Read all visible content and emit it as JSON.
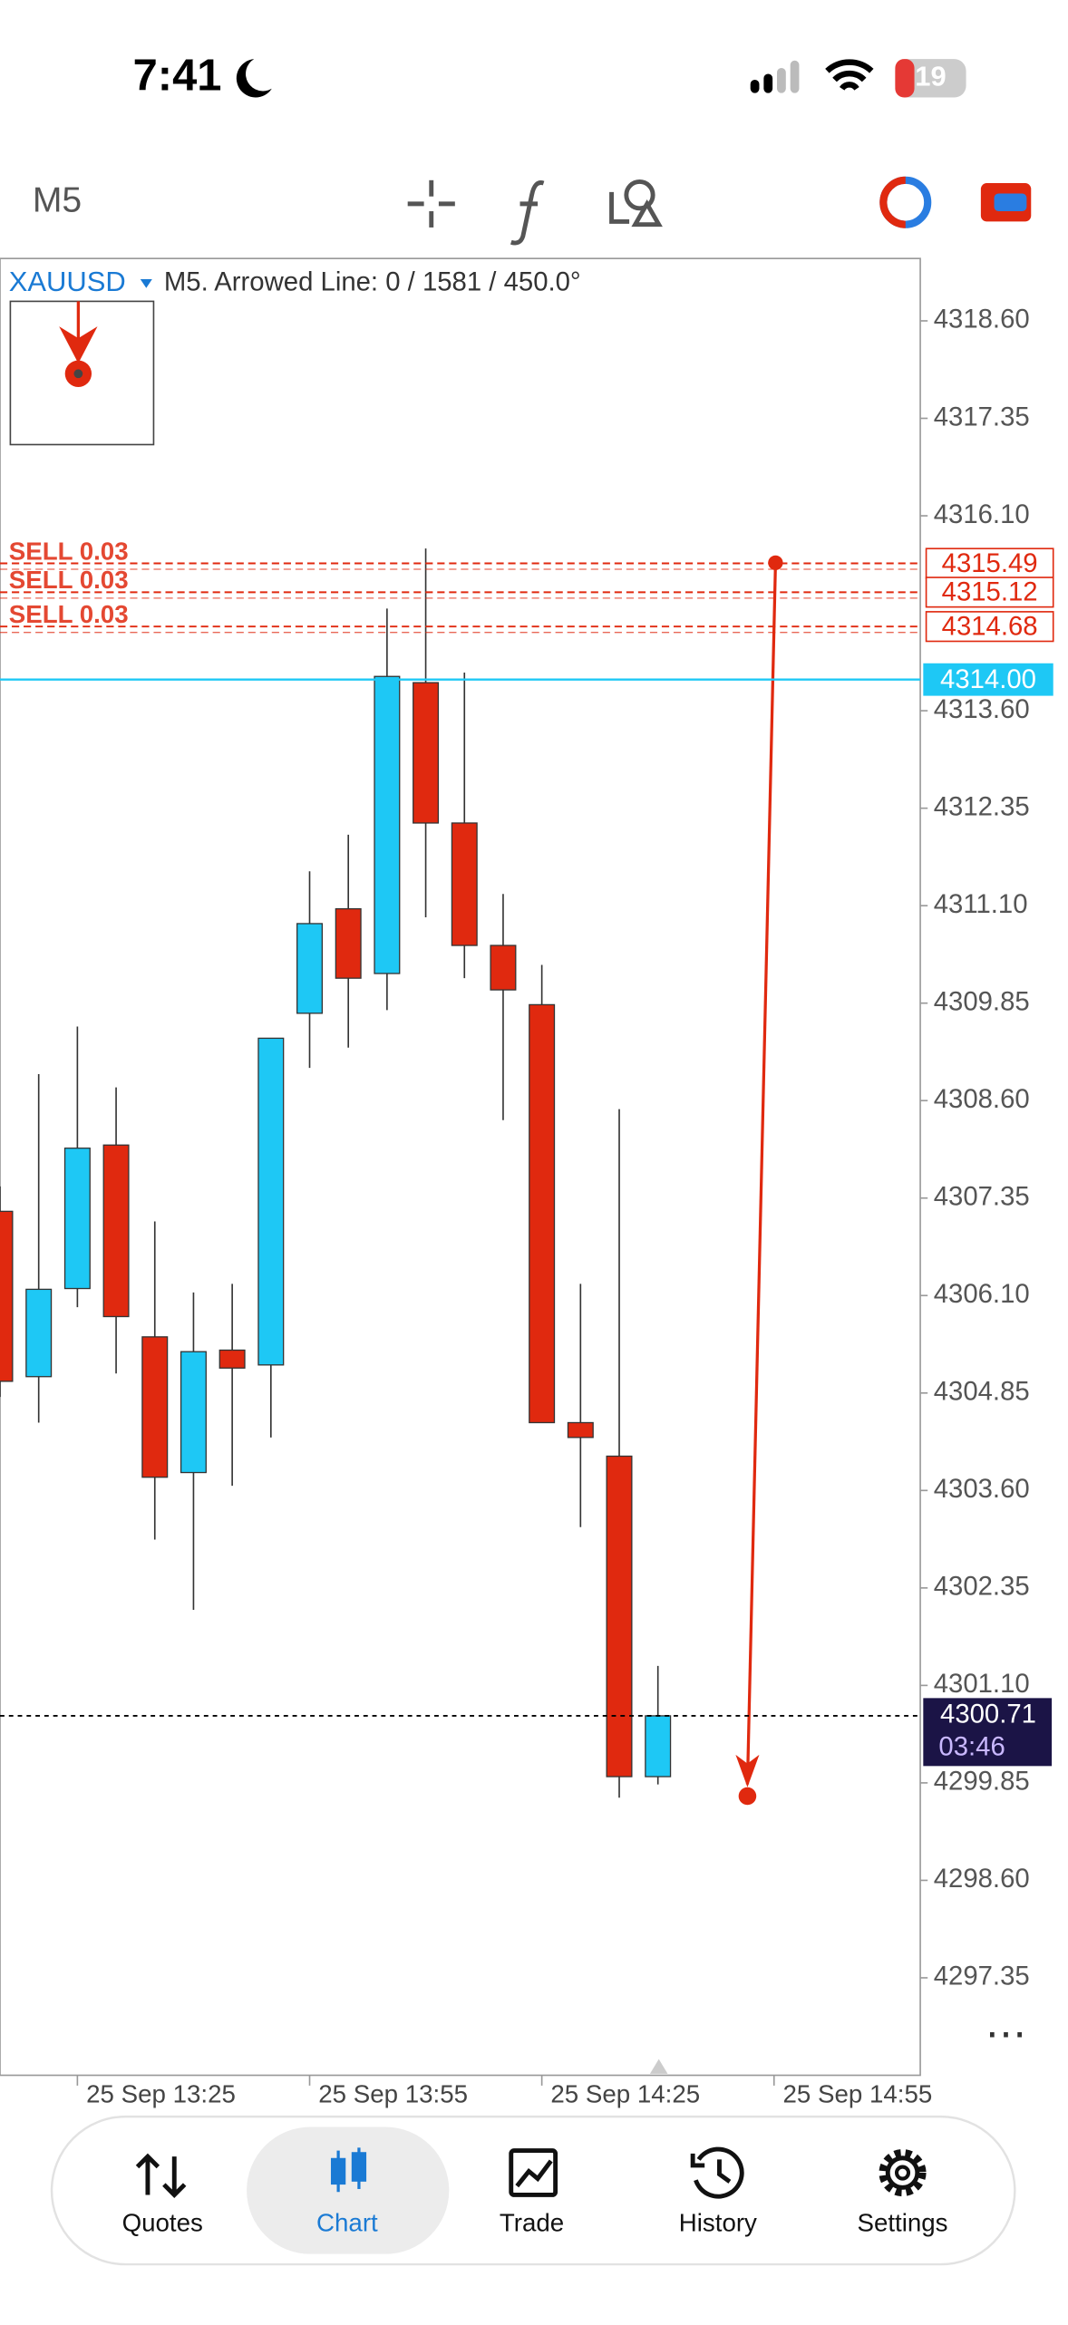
{
  "status_bar": {
    "time": "7:41",
    "battery": "19"
  },
  "toolbar": {
    "timeframe": "M5"
  },
  "chart_data": {
    "type": "candlestick",
    "symbol": "XAUUSD",
    "info": "M5. Arrowed Line: 0 / 1581 / 450.0°",
    "up_color": "#1ec8f5",
    "down_color": "#e0290f",
    "open": [
      4307.18,
      4305.06,
      4306.19,
      4308.03,
      4305.57,
      4303.83,
      4305.4,
      4305.21,
      4309.72,
      4311.06,
      4310.23,
      4313.96,
      4312.16,
      4310.59,
      4309.83,
      4304.47,
      4304.04,
      4299.93
    ],
    "high": [
      4307.5,
      4308.94,
      4309.55,
      4308.77,
      4307.05,
      4306.14,
      4306.25,
      4309.4,
      4311.54,
      4312.01,
      4314.91,
      4315.68,
      4314.09,
      4311.25,
      4310.34,
      4306.25,
      4308.49,
      4301.35
    ],
    "low": [
      4304.8,
      4304.47,
      4305.95,
      4305.1,
      4302.97,
      4302.07,
      4303.66,
      4304.28,
      4309.02,
      4309.28,
      4309.76,
      4310.95,
      4310.17,
      4308.35,
      4304.47,
      4303.13,
      4299.66,
      4299.83
    ],
    "close": [
      4305.0,
      4306.18,
      4307.99,
      4305.83,
      4303.77,
      4305.38,
      4305.17,
      4309.4,
      4310.87,
      4310.17,
      4314.04,
      4312.16,
      4310.59,
      4310.02,
      4304.47,
      4304.28,
      4299.93,
      4300.71
    ],
    "ylim": [
      4296.1,
      4319.4
    ],
    "yticks": [
      {
        "value": 4318.6,
        "label": "4318.60"
      },
      {
        "value": 4317.35,
        "label": "4317.35"
      },
      {
        "value": 4316.1,
        "label": "4316.10"
      },
      {
        "value": 4313.6,
        "label": "4313.60"
      },
      {
        "value": 4312.35,
        "label": "4312.35"
      },
      {
        "value": 4311.1,
        "label": "4311.10"
      },
      {
        "value": 4309.85,
        "label": "4309.85"
      },
      {
        "value": 4308.6,
        "label": "4308.60"
      },
      {
        "value": 4307.35,
        "label": "4307.35"
      },
      {
        "value": 4306.1,
        "label": "4306.10"
      },
      {
        "value": 4304.85,
        "label": "4304.85"
      },
      {
        "value": 4303.6,
        "label": "4303.60"
      },
      {
        "value": 4302.35,
        "label": "4302.35"
      },
      {
        "value": 4301.1,
        "label": "4301.10"
      },
      {
        "value": 4299.85,
        "label": "4299.85"
      },
      {
        "value": 4298.6,
        "label": "4298.60"
      },
      {
        "value": 4297.35,
        "label": "4297.35"
      }
    ],
    "time_labels": [
      "25 Sep 13:25",
      "25 Sep 13:55",
      "25 Sep 14:25",
      "25 Sep 14:55"
    ],
    "orders": [
      {
        "label": "SELL 0.03",
        "price": 4315.49
      },
      {
        "label": "SELL 0.03",
        "price": 4315.12
      },
      {
        "label": "SELL 0.03",
        "price": 4314.68
      }
    ],
    "ask": {
      "value": 4314,
      "label": "4314.00"
    },
    "last_price": 4300.71,
    "timer": "03:46"
  },
  "tab_bar": {
    "tabs": [
      "Quotes",
      "Chart",
      "Trade",
      "History",
      "Settings"
    ]
  }
}
